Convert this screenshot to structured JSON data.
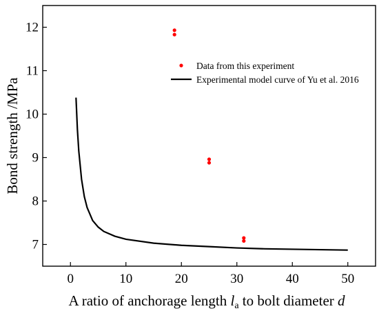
{
  "chart_data": {
    "type": "scatter",
    "title": "",
    "xlabel": {
      "prefix": "A ratio of anchorage length ",
      "var1": "l",
      "var1_sub": "a",
      "middle": " to bolt diameter ",
      "var2": "d"
    },
    "ylabel": "Bond strength /MPa",
    "xlim": [
      -5,
      55
    ],
    "ylim": [
      6.5,
      12.5
    ],
    "xticks": [
      0,
      10,
      20,
      30,
      40,
      50
    ],
    "yticks": [
      7,
      8,
      9,
      10,
      11,
      12
    ],
    "grid": false,
    "legend_position": "top-right",
    "series": [
      {
        "name": "Data from this experiment",
        "kind": "scatter",
        "color": "#ff0000",
        "points": [
          {
            "x": 18.75,
            "y": 11.93
          },
          {
            "x": 18.75,
            "y": 11.83
          },
          {
            "x": 25.0,
            "y": 8.96
          },
          {
            "x": 25.0,
            "y": 8.88
          },
          {
            "x": 31.25,
            "y": 7.15
          },
          {
            "x": 31.25,
            "y": 7.08
          }
        ]
      },
      {
        "name": "Experimental model curve of Yu et al. 2016",
        "kind": "line",
        "color": "#000000",
        "points": [
          {
            "x": 1.0,
            "y": 10.38
          },
          {
            "x": 1.25,
            "y": 9.65
          },
          {
            "x": 1.5,
            "y": 9.15
          },
          {
            "x": 2.0,
            "y": 8.5
          },
          {
            "x": 2.5,
            "y": 8.1
          },
          {
            "x": 3.0,
            "y": 7.85
          },
          {
            "x": 4.0,
            "y": 7.55
          },
          {
            "x": 5.0,
            "y": 7.4
          },
          {
            "x": 6.0,
            "y": 7.3
          },
          {
            "x": 8.0,
            "y": 7.19
          },
          {
            "x": 10.0,
            "y": 7.12
          },
          {
            "x": 15.0,
            "y": 7.03
          },
          {
            "x": 20.0,
            "y": 6.98
          },
          {
            "x": 25.0,
            "y": 6.95
          },
          {
            "x": 30.0,
            "y": 6.92
          },
          {
            "x": 35.0,
            "y": 6.9
          },
          {
            "x": 40.0,
            "y": 6.89
          },
          {
            "x": 45.0,
            "y": 6.88
          },
          {
            "x": 50.0,
            "y": 6.87
          }
        ]
      }
    ]
  }
}
